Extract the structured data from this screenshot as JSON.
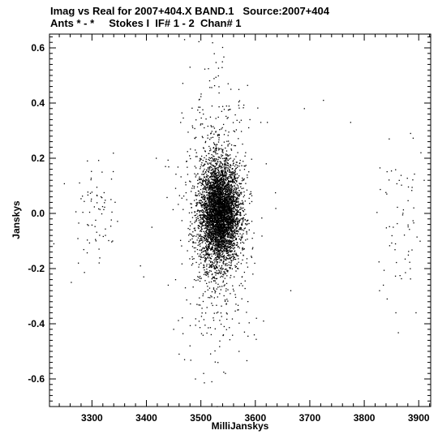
{
  "chart_data": {
    "type": "scatter",
    "title_line1": "Imag vs Real for 2007+404.X BAND.1   Source:2007+404",
    "title_line2": "Ants * - *     Stokes I  IF# 1 - 2  Chan# 1",
    "xlabel": "MilliJanskys",
    "ylabel": "Janskys",
    "xlim": [
      3222,
      3922
    ],
    "ylim": [
      -0.7,
      0.65
    ],
    "xticks": [
      3300,
      3400,
      3500,
      3600,
      3700,
      3800,
      3900
    ],
    "xtick_labels": [
      "3300",
      "3400",
      "3500",
      "3600",
      "3700",
      "3800",
      "3900"
    ],
    "yticks": [
      -0.6,
      -0.4,
      -0.2,
      0.0,
      0.2,
      0.4,
      0.6
    ],
    "ytick_labels": [
      "-0.6",
      "-0.4",
      "-0.2",
      "0.0",
      "0.2",
      "0.4",
      "0.6"
    ],
    "grid": false,
    "marker_color": "#000000",
    "clusters": [
      {
        "name": "main",
        "center_x": 3535,
        "center_y": 0.0,
        "sd_x": 18,
        "sd_y": 0.09,
        "count": 4200
      },
      {
        "name": "main-halo",
        "center_x": 3530,
        "center_y": 0.0,
        "sd_x": 30,
        "sd_y": 0.22,
        "count": 900
      },
      {
        "name": "left-cloud",
        "center_x": 3310,
        "center_y": 0.0,
        "sd_x": 20,
        "sd_y": 0.09,
        "count": 70
      },
      {
        "name": "right-cloud",
        "center_x": 3870,
        "center_y": -0.05,
        "sd_x": 22,
        "sd_y": 0.13,
        "count": 60
      }
    ],
    "outliers": [
      [
        3230,
        -0.11
      ],
      [
        3262,
        -0.25
      ],
      [
        3275,
        -0.18
      ],
      [
        3389,
        -0.19
      ],
      [
        3395,
        -0.23
      ],
      [
        3470,
        0.63
      ],
      [
        3480,
        0.53
      ],
      [
        3505,
        -0.58
      ],
      [
        3520,
        -0.61
      ],
      [
        3545,
        -0.58
      ],
      [
        3550,
        0.47
      ],
      [
        3610,
        0.33
      ],
      [
        3622,
        0.33
      ],
      [
        3665,
        -0.28
      ],
      [
        3690,
        0.38
      ],
      [
        3725,
        0.41
      ],
      [
        3775,
        0.33
      ],
      [
        3828,
        -0.28
      ],
      [
        3835,
        -0.26
      ],
      [
        3842,
        -0.31
      ],
      [
        3858,
        -0.36
      ],
      [
        3885,
        0.29
      ],
      [
        3895,
        -0.36
      ],
      [
        3904,
        0.22
      ],
      [
        3910,
        0.12
      ],
      [
        3598,
        -0.44
      ],
      [
        3602,
        -0.38
      ],
      [
        3615,
        -0.39
      ],
      [
        3620,
        0.18
      ],
      [
        3590,
        0.34
      ],
      [
        3450,
        -0.42
      ],
      [
        3435,
        0.17
      ],
      [
        3440,
        -0.26
      ],
      [
        3460,
        -0.51
      ],
      [
        3470,
        -0.53
      ],
      [
        3480,
        -0.48
      ],
      [
        3490,
        -0.6
      ],
      [
        3570,
        -0.5
      ],
      [
        3580,
        -0.43
      ],
      [
        3555,
        0.45
      ],
      [
        3530,
        -0.7
      ],
      [
        3418,
        0.2
      ],
      [
        3410,
        -0.05
      ]
    ]
  }
}
